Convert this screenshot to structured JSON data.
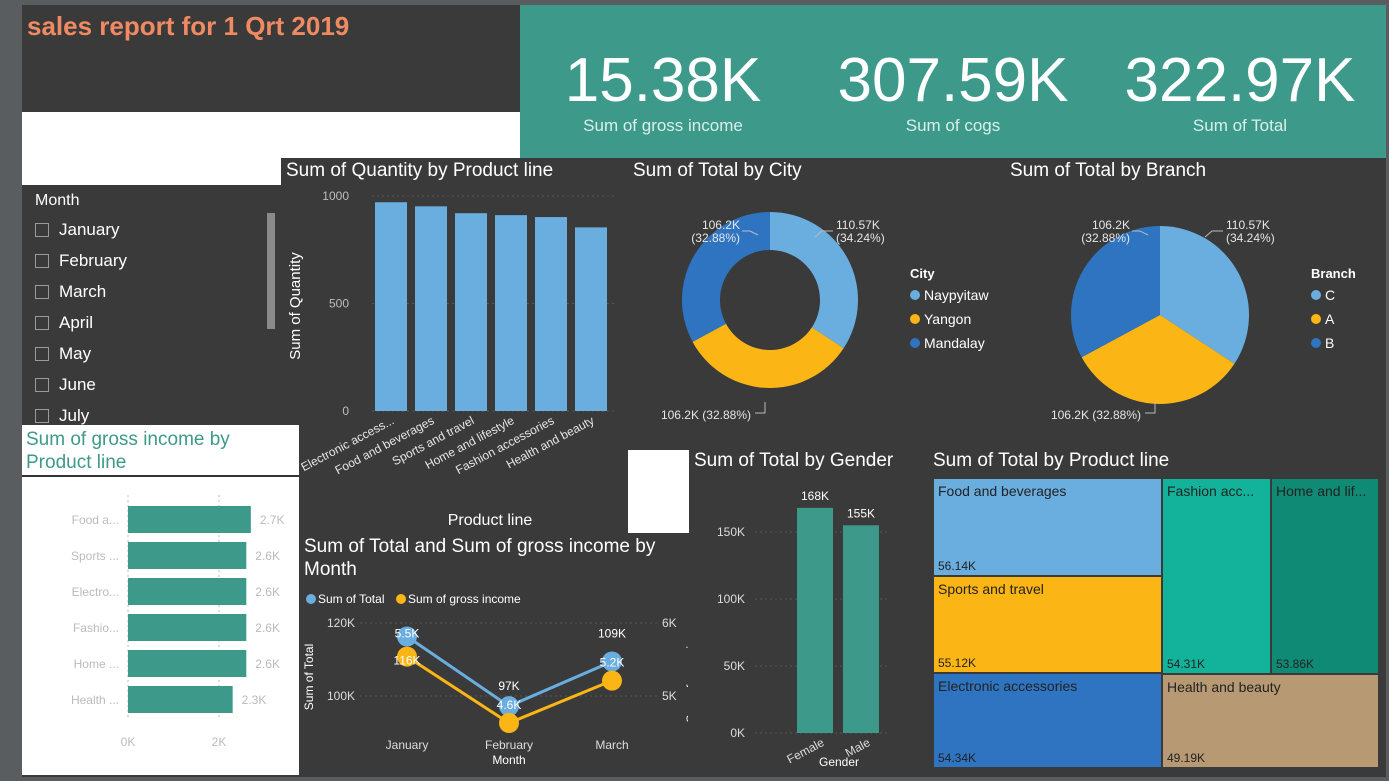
{
  "header": {
    "title": "sales report for 1 Qrt 2019"
  },
  "kpis": [
    {
      "value": "15.38K",
      "label": "Sum of gross income"
    },
    {
      "value": "307.59K",
      "label": "Sum of cogs"
    },
    {
      "value": "322.97K",
      "label": "Sum of Total"
    }
  ],
  "slicer": {
    "title": "Month",
    "items": [
      "January",
      "February",
      "March",
      "April",
      "May",
      "June",
      "July"
    ]
  },
  "colors": {
    "teal": "#3d9a8a",
    "blue_light": "#6aaee0",
    "blue_dark": "#2f74c0",
    "yellow": "#fbb515",
    "bg_dark": "#3a3a3a",
    "title_orange": "#f08a63"
  },
  "qty_chart": {
    "title": "Sum of Quantity by Product line",
    "xlabel": "Product line",
    "ylabel": "Sum of Quantity",
    "yticks": [
      "1000",
      "500",
      "0"
    ],
    "chart_data": {
      "type": "bar",
      "categories": [
        "Electronic access...",
        "Food and beverages",
        "Sports and travel",
        "Home and lifestyle",
        "Fashion accessories",
        "Health and beauty"
      ],
      "values": [
        971,
        952,
        920,
        911,
        902,
        854
      ],
      "ylim": [
        0,
        1000
      ]
    }
  },
  "city_chart": {
    "title": "Sum of Total by City",
    "legend_title": "City",
    "legend": [
      "Naypyitaw",
      "Yangon",
      "Mandalay"
    ],
    "labels": {
      "top_left": "106.2K\n(32.88%)",
      "top_right": "110.57K\n(34.24%)",
      "bottom": "106.2K (32.88%)"
    },
    "chart_data": {
      "type": "pie",
      "categories": [
        "Naypyitaw",
        "Yangon",
        "Mandalay"
      ],
      "values": [
        110.57,
        106.2,
        106.2
      ]
    }
  },
  "branch_chart": {
    "title": "Sum of Total by Branch",
    "legend_title": "Branch",
    "legend": [
      "C",
      "A",
      "B"
    ],
    "labels": {
      "top_left": "106.2K\n(32.88%)",
      "top_right": "110.57K\n(34.24%)",
      "bottom": "106.2K (32.88%)"
    },
    "chart_data": {
      "type": "pie",
      "categories": [
        "C",
        "A",
        "B"
      ],
      "values": [
        110.57,
        106.2,
        106.2
      ]
    }
  },
  "gross_chart": {
    "title": "Sum of gross income by Product line",
    "xticks": [
      "0K",
      "2K"
    ],
    "chart_data": {
      "type": "bar",
      "categories": [
        "Food a...",
        "Sports ...",
        "Electro...",
        "Fashio...",
        "Home ...",
        "Health ..."
      ],
      "values": [
        2.7,
        2.6,
        2.6,
        2.6,
        2.6,
        2.3
      ],
      "data_labels": [
        "2.7K",
        "2.6K",
        "2.6K",
        "2.6K",
        "2.6K",
        "2.3K"
      ],
      "xlim": [
        0,
        3
      ]
    }
  },
  "month_chart": {
    "title": "Sum of Total and Sum of gross income by Month",
    "legend": [
      "Sum of Total",
      "Sum of gross income"
    ],
    "xlabel": "Month",
    "ylabel_left": "Sum of Total",
    "ylabel_right": "Sum of gross inc...",
    "yticks_left": [
      "120K",
      "100K"
    ],
    "yticks_right": [
      "6K",
      "5K"
    ],
    "chart_data": {
      "type": "line",
      "categories": [
        "January",
        "February",
        "March"
      ],
      "series": [
        {
          "name": "Sum of Total",
          "values": [
            116.29,
            97.22,
            109.46
          ],
          "labels": [
            "116K",
            "97K",
            "109K"
          ]
        },
        {
          "name": "Sum of gross income",
          "values": [
            5.54,
            4.63,
            5.21
          ],
          "labels": [
            "5.5K",
            "4.6K",
            "5.2K"
          ]
        }
      ]
    }
  },
  "gender_chart": {
    "title": "Sum of Total by Gender",
    "xlabel": "Gender",
    "yticks": [
      "150K",
      "100K",
      "50K",
      "0K"
    ],
    "chart_data": {
      "type": "bar",
      "categories": [
        "Female",
        "Male"
      ],
      "values": [
        168,
        155
      ],
      "data_labels": [
        "168K",
        "155K"
      ],
      "ylim": [
        0,
        180
      ]
    }
  },
  "treemap": {
    "title": "Sum of Total by Product line",
    "chart_data": {
      "type": "table",
      "categories": [
        "Food and beverages",
        "Sports and travel",
        "Electronic accessories",
        "Fashion acc...",
        "Home and lif...",
        "Health and beauty"
      ],
      "values": [
        "56.14K",
        "55.12K",
        "54.34K",
        "54.31K",
        "53.86K",
        "49.19K"
      ]
    }
  }
}
